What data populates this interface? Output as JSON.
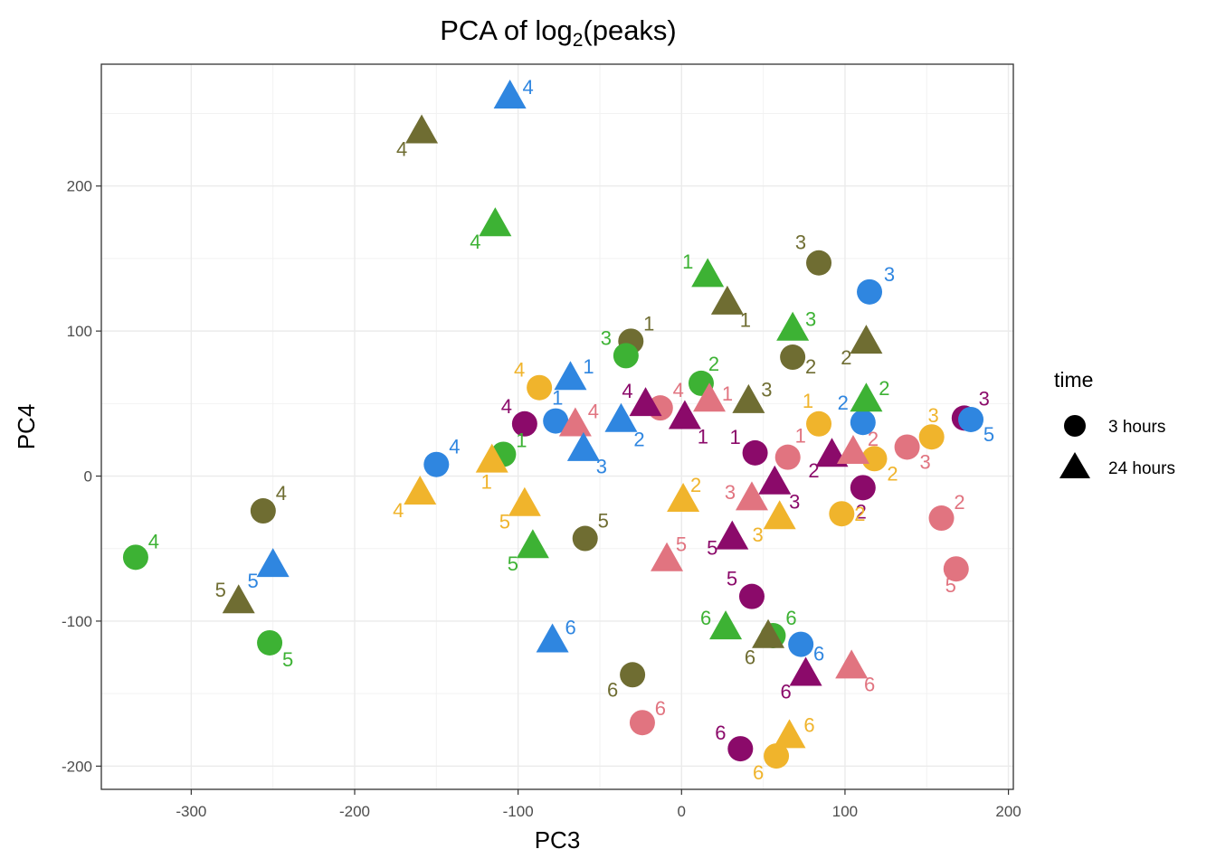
{
  "chart_data": {
    "type": "scatter",
    "title_main": "PCA of log",
    "title_sub": "2",
    "title_end": "(peaks)",
    "xlabel": "PC3",
    "ylabel": "PC4",
    "xlim": [
      -355,
      203
    ],
    "ylim": [
      -216,
      284
    ],
    "xticks": [
      -300,
      -200,
      -100,
      0,
      100,
      200
    ],
    "yticks": [
      -200,
      -100,
      0,
      100,
      200
    ],
    "xtick_labels": [
      "-300",
      "-200",
      "-100",
      "0",
      "100",
      "200"
    ],
    "ytick_labels": [
      "-200",
      "-100",
      "0",
      "100",
      "200"
    ],
    "grid": true,
    "legend": {
      "title": "time",
      "position": "right",
      "entries": [
        {
          "label": "3 hours",
          "shape": "circle"
        },
        {
          "label": "24 hours",
          "shape": "triangle"
        }
      ]
    },
    "colors": {
      "olive": "#6f6d32",
      "green": "#3db234",
      "blue": "#2f86e0",
      "yellow": "#f0b42c",
      "purple": "#8b0a6a",
      "pink": "#e17480"
    },
    "points": [
      {
        "x": 84,
        "y": 147,
        "shape": "circle",
        "color": "olive",
        "label": "3",
        "lx": -20,
        "ly": -23
      },
      {
        "x": 115,
        "y": 127,
        "shape": "circle",
        "color": "blue",
        "label": "3",
        "lx": 22,
        "ly": -20
      },
      {
        "x": -31,
        "y": 93,
        "shape": "circle",
        "color": "olive",
        "label": "1",
        "lx": 20,
        "ly": -20
      },
      {
        "x": -34,
        "y": 83,
        "shape": "circle",
        "color": "green",
        "label": "3",
        "lx": -22,
        "ly": -20
      },
      {
        "x": 68,
        "y": 82,
        "shape": "circle",
        "color": "olive",
        "label": "2",
        "lx": 20,
        "ly": 10
      },
      {
        "x": 12,
        "y": 64,
        "shape": "circle",
        "color": "green",
        "label": "2",
        "lx": 14,
        "ly": -22
      },
      {
        "x": -87,
        "y": 61,
        "shape": "circle",
        "color": "yellow",
        "label": "4",
        "lx": -22,
        "ly": -20
      },
      {
        "x": -13,
        "y": 47,
        "shape": "circle",
        "color": "pink",
        "label": "4",
        "lx": 20,
        "ly": -20
      },
      {
        "x": -77,
        "y": 38,
        "shape": "circle",
        "color": "blue",
        "label": "1",
        "lx": 2,
        "ly": -26
      },
      {
        "x": -96,
        "y": 36,
        "shape": "circle",
        "color": "purple",
        "label": "4",
        "lx": -20,
        "ly": -20
      },
      {
        "x": 84,
        "y": 36,
        "shape": "circle",
        "color": "yellow",
        "label": "1",
        "lx": -12,
        "ly": -26
      },
      {
        "x": 111,
        "y": 37,
        "shape": "circle",
        "color": "blue",
        "label": "2",
        "lx": -22,
        "ly": -22
      },
      {
        "x": 173,
        "y": 40,
        "shape": "circle",
        "color": "purple",
        "label": "3",
        "lx": 22,
        "ly": -22
      },
      {
        "x": 177,
        "y": 39,
        "shape": "circle",
        "color": "blue",
        "label": "5",
        "lx": 20,
        "ly": 16
      },
      {
        "x": 153,
        "y": 27,
        "shape": "circle",
        "color": "yellow",
        "label": "3",
        "lx": 2,
        "ly": -24
      },
      {
        "x": 138,
        "y": 20,
        "shape": "circle",
        "color": "pink",
        "label": "3",
        "lx": 20,
        "ly": 16
      },
      {
        "x": 45,
        "y": 16,
        "shape": "circle",
        "color": "purple",
        "label": "1",
        "lx": -22,
        "ly": -18
      },
      {
        "x": 65,
        "y": 13,
        "shape": "circle",
        "color": "pink",
        "label": "1",
        "lx": 14,
        "ly": -24
      },
      {
        "x": 118,
        "y": 12,
        "shape": "circle",
        "color": "yellow",
        "label": "2",
        "lx": 20,
        "ly": 16
      },
      {
        "x": -150,
        "y": 8,
        "shape": "circle",
        "color": "blue",
        "label": "4",
        "lx": 20,
        "ly": -20
      },
      {
        "x": -109,
        "y": 15,
        "shape": "circle",
        "color": "green",
        "label": "1",
        "lx": 20,
        "ly": -16
      },
      {
        "x": 111,
        "y": -8,
        "shape": "circle",
        "color": "purple",
        "label": "2",
        "lx": -2,
        "ly": 26
      },
      {
        "x": 98,
        "y": -26,
        "shape": "circle",
        "color": "yellow",
        "label": "2",
        "lx": 20,
        "ly": 0
      },
      {
        "x": -256,
        "y": -24,
        "shape": "circle",
        "color": "olive",
        "label": "4",
        "lx": 20,
        "ly": -20
      },
      {
        "x": -59,
        "y": -43,
        "shape": "circle",
        "color": "olive",
        "label": "5",
        "lx": 20,
        "ly": -20
      },
      {
        "x": 159,
        "y": -29,
        "shape": "circle",
        "color": "pink",
        "label": "2",
        "lx": 20,
        "ly": -18
      },
      {
        "x": -334,
        "y": -56,
        "shape": "circle",
        "color": "green",
        "label": "4",
        "lx": 20,
        "ly": -18
      },
      {
        "x": 168,
        "y": -64,
        "shape": "circle",
        "color": "pink",
        "label": "5",
        "lx": -6,
        "ly": 18
      },
      {
        "x": 43,
        "y": -83,
        "shape": "circle",
        "color": "purple",
        "label": "5",
        "lx": -22,
        "ly": -20
      },
      {
        "x": -252,
        "y": -115,
        "shape": "circle",
        "color": "green",
        "label": "5",
        "lx": 20,
        "ly": 18
      },
      {
        "x": 56,
        "y": -110,
        "shape": "circle",
        "color": "green",
        "label": "6",
        "lx": 20,
        "ly": -20
      },
      {
        "x": 73,
        "y": -116,
        "shape": "circle",
        "color": "blue",
        "label": "6",
        "lx": 20,
        "ly": 10
      },
      {
        "x": -30,
        "y": -137,
        "shape": "circle",
        "color": "olive",
        "label": "6",
        "lx": -22,
        "ly": 16
      },
      {
        "x": -24,
        "y": -170,
        "shape": "circle",
        "color": "pink",
        "label": "6",
        "lx": 20,
        "ly": -16
      },
      {
        "x": 36,
        "y": -188,
        "shape": "circle",
        "color": "purple",
        "label": "6",
        "lx": -22,
        "ly": -18
      },
      {
        "x": 58,
        "y": -193,
        "shape": "circle",
        "color": "yellow",
        "label": "6",
        "lx": -20,
        "ly": 18
      },
      {
        "x": -105,
        "y": 261,
        "shape": "triangle",
        "color": "blue",
        "label": "4",
        "lx": 20,
        "ly": -12
      },
      {
        "x": -159,
        "y": 237,
        "shape": "triangle",
        "color": "olive",
        "label": "4",
        "lx": -22,
        "ly": 18
      },
      {
        "x": -114,
        "y": 173,
        "shape": "triangle",
        "color": "green",
        "label": "4",
        "lx": -22,
        "ly": 18
      },
      {
        "x": 16,
        "y": 138,
        "shape": "triangle",
        "color": "green",
        "label": "1",
        "lx": -22,
        "ly": -16
      },
      {
        "x": 28,
        "y": 119,
        "shape": "triangle",
        "color": "olive",
        "label": "1",
        "lx": 20,
        "ly": 18
      },
      {
        "x": 68,
        "y": 101,
        "shape": "triangle",
        "color": "green",
        "label": "3",
        "lx": 20,
        "ly": -12
      },
      {
        "x": 113,
        "y": 92,
        "shape": "triangle",
        "color": "olive",
        "label": "2",
        "lx": -22,
        "ly": 16
      },
      {
        "x": -68,
        "y": 67,
        "shape": "triangle",
        "color": "blue",
        "label": "1",
        "lx": 20,
        "ly": -14
      },
      {
        "x": 113,
        "y": 52,
        "shape": "triangle",
        "color": "green",
        "label": "2",
        "lx": 20,
        "ly": -14
      },
      {
        "x": 41,
        "y": 51,
        "shape": "triangle",
        "color": "olive",
        "label": "3",
        "lx": 20,
        "ly": -14
      },
      {
        "x": -22,
        "y": 49,
        "shape": "triangle",
        "color": "purple",
        "label": "4",
        "lx": -20,
        "ly": -16
      },
      {
        "x": 17,
        "y": 52,
        "shape": "triangle",
        "color": "pink",
        "label": "1",
        "lx": 20,
        "ly": -8
      },
      {
        "x": -37,
        "y": 38,
        "shape": "triangle",
        "color": "blue",
        "label": "2",
        "lx": 20,
        "ly": 20
      },
      {
        "x": 2,
        "y": 40,
        "shape": "triangle",
        "color": "purple",
        "label": "1",
        "lx": 20,
        "ly": 20
      },
      {
        "x": -65,
        "y": 35,
        "shape": "triangle",
        "color": "pink",
        "label": "4",
        "lx": 20,
        "ly": -16
      },
      {
        "x": -60,
        "y": 18,
        "shape": "triangle",
        "color": "blue",
        "label": "3",
        "lx": 20,
        "ly": 18
      },
      {
        "x": -116,
        "y": 10,
        "shape": "triangle",
        "color": "yellow",
        "label": "1",
        "lx": -6,
        "ly": 22
      },
      {
        "x": 92,
        "y": 14,
        "shape": "triangle",
        "color": "purple",
        "label": "2",
        "lx": -20,
        "ly": 16
      },
      {
        "x": 105,
        "y": 16,
        "shape": "triangle",
        "color": "pink",
        "label": "2",
        "lx": 22,
        "ly": -16
      },
      {
        "x": 57,
        "y": -5,
        "shape": "triangle",
        "color": "purple",
        "label": "3",
        "lx": 22,
        "ly": 20
      },
      {
        "x": -160,
        "y": -12,
        "shape": "triangle",
        "color": "yellow",
        "label": "4",
        "lx": -24,
        "ly": 18
      },
      {
        "x": 43,
        "y": -16,
        "shape": "triangle",
        "color": "pink",
        "label": "3",
        "lx": -24,
        "ly": -8
      },
      {
        "x": 1,
        "y": -17,
        "shape": "triangle",
        "color": "yellow",
        "label": "2",
        "lx": 14,
        "ly": -18
      },
      {
        "x": -96,
        "y": -20,
        "shape": "triangle",
        "color": "yellow",
        "label": "5",
        "lx": -22,
        "ly": 18
      },
      {
        "x": 60,
        "y": -29,
        "shape": "triangle",
        "color": "yellow",
        "label": "3",
        "lx": -24,
        "ly": 18
      },
      {
        "x": 31,
        "y": -43,
        "shape": "triangle",
        "color": "purple",
        "label": "5",
        "lx": -22,
        "ly": 10
      },
      {
        "x": -91,
        "y": -49,
        "shape": "triangle",
        "color": "green",
        "label": "5",
        "lx": -22,
        "ly": 18
      },
      {
        "x": -9,
        "y": -58,
        "shape": "triangle",
        "color": "pink",
        "label": "5",
        "lx": 16,
        "ly": -18
      },
      {
        "x": -250,
        "y": -62,
        "shape": "triangle",
        "color": "blue",
        "label": "5",
        "lx": -22,
        "ly": 16
      },
      {
        "x": -271,
        "y": -87,
        "shape": "triangle",
        "color": "olive",
        "label": "5",
        "lx": -20,
        "ly": -14
      },
      {
        "x": -79,
        "y": -114,
        "shape": "triangle",
        "color": "blue",
        "label": "6",
        "lx": 20,
        "ly": -16
      },
      {
        "x": 27,
        "y": -105,
        "shape": "triangle",
        "color": "green",
        "label": "6",
        "lx": -22,
        "ly": -12
      },
      {
        "x": 53,
        "y": -111,
        "shape": "triangle",
        "color": "olive",
        "label": "6",
        "lx": -20,
        "ly": 22
      },
      {
        "x": 76,
        "y": -137,
        "shape": "triangle",
        "color": "purple",
        "label": "6",
        "lx": -22,
        "ly": 18
      },
      {
        "x": 104,
        "y": -132,
        "shape": "triangle",
        "color": "pink",
        "label": "6",
        "lx": 20,
        "ly": 18
      },
      {
        "x": 66,
        "y": -180,
        "shape": "triangle",
        "color": "yellow",
        "label": "6",
        "lx": 22,
        "ly": -14
      }
    ]
  }
}
